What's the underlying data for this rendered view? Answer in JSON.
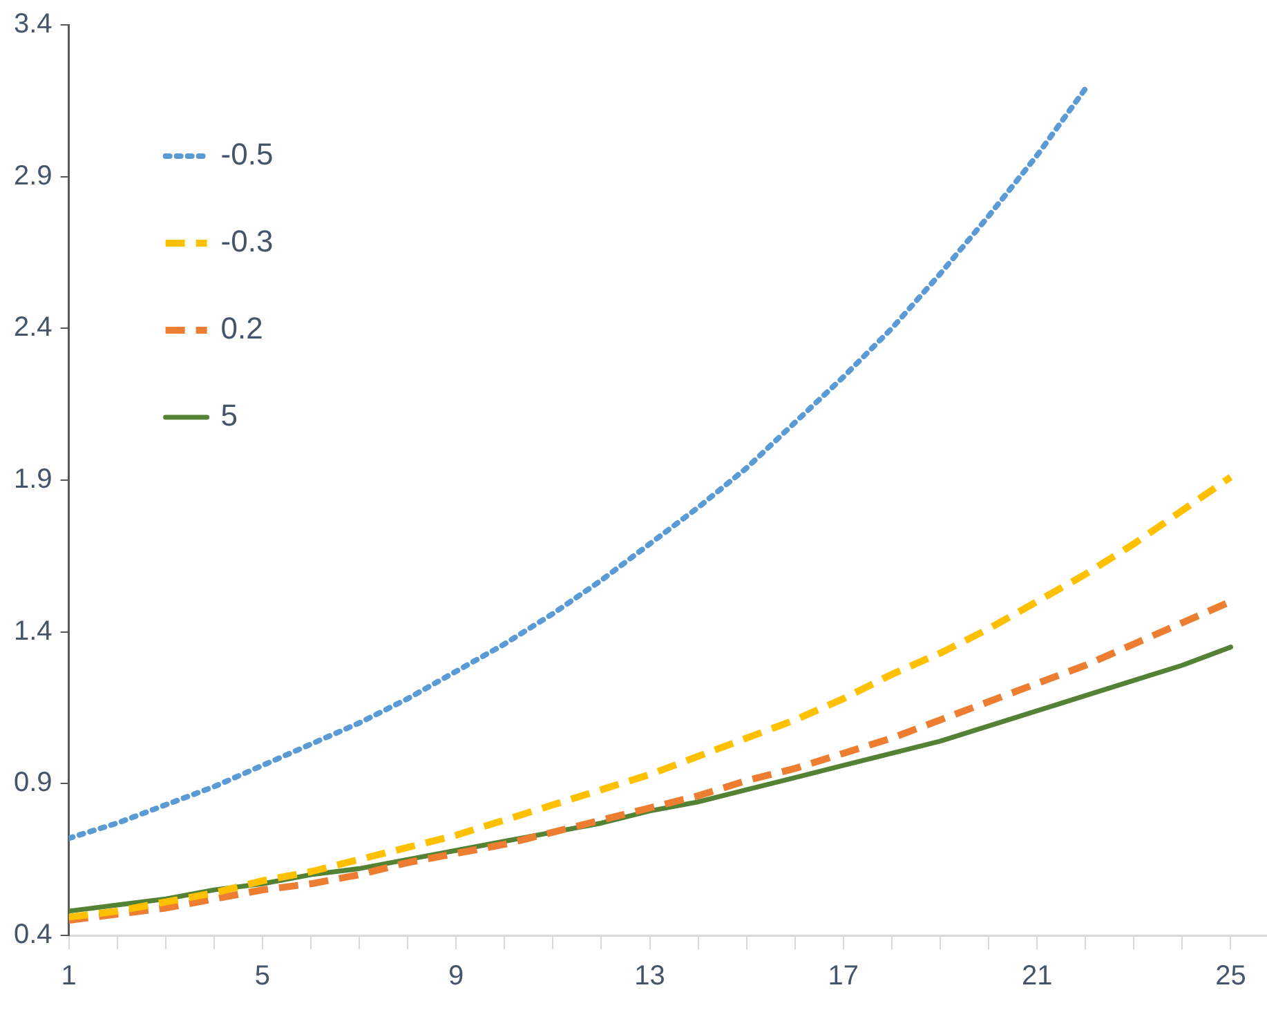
{
  "chart_data": {
    "type": "line",
    "x": [
      1,
      2,
      3,
      4,
      5,
      6,
      7,
      8,
      9,
      10,
      11,
      12,
      13,
      14,
      15,
      16,
      17,
      18,
      19,
      20,
      21,
      22,
      23,
      24,
      25
    ],
    "xlim": [
      1,
      25.75
    ],
    "xticks": [
      1,
      {
        "value": 2,
        "label": null
      },
      {
        "value": 3,
        "label": null
      },
      {
        "value": 4,
        "label": null
      },
      5,
      {
        "value": 6,
        "label": null
      },
      {
        "value": 7,
        "label": null
      },
      {
        "value": 8,
        "label": null
      },
      9,
      {
        "value": 10,
        "label": null
      },
      {
        "value": 11,
        "label": null
      },
      {
        "value": 12,
        "label": null
      },
      13,
      {
        "value": 14,
        "label": null
      },
      {
        "value": 15,
        "label": null
      },
      {
        "value": 16,
        "label": null
      },
      17,
      {
        "value": 18,
        "label": null
      },
      {
        "value": 19,
        "label": null
      },
      {
        "value": 20,
        "label": null
      },
      21,
      {
        "value": 22,
        "label": null
      },
      {
        "value": 23,
        "label": null
      },
      {
        "value": 24,
        "label": null
      },
      25
    ],
    "ylim": [
      0.4,
      3.4
    ],
    "yticks": [
      0.4,
      0.9,
      1.4,
      1.9,
      2.4,
      2.9,
      3.4
    ],
    "grid": false,
    "legend": "top left",
    "marker": "none",
    "series": [
      {
        "name": "-0.5",
        "color": "#5b9bd5",
        "line_style": "dotted",
        "values": [
          0.72,
          0.77,
          0.83,
          0.89,
          0.96,
          1.03,
          1.1,
          1.18,
          1.27,
          1.36,
          1.46,
          1.57,
          1.69,
          1.81,
          1.94,
          2.09,
          2.24,
          2.4,
          2.58,
          2.77,
          2.97,
          3.19,
          null,
          null,
          null
        ]
      },
      {
        "name": "-0.3",
        "color": "#ffc000",
        "line_style": "dashed",
        "values": [
          0.46,
          0.48,
          0.51,
          0.54,
          0.58,
          0.61,
          0.65,
          0.69,
          0.73,
          0.78,
          0.83,
          0.88,
          0.93,
          0.99,
          1.05,
          1.11,
          1.18,
          1.26,
          1.33,
          1.41,
          1.5,
          1.59,
          1.69,
          1.8,
          1.91
        ]
      },
      {
        "name": "0.2",
        "color": "#ed7d31",
        "line_style": "dashed",
        "values": [
          0.45,
          0.47,
          0.49,
          0.52,
          0.55,
          0.57,
          0.6,
          0.64,
          0.67,
          0.7,
          0.74,
          0.78,
          0.82,
          0.86,
          0.91,
          0.95,
          1.0,
          1.05,
          1.11,
          1.17,
          1.23,
          1.29,
          1.36,
          1.43,
          1.5
        ]
      },
      {
        "name": "5",
        "color": "#548235",
        "line_style": "solid",
        "values": [
          0.48,
          0.5,
          0.52,
          0.55,
          0.57,
          0.6,
          0.62,
          0.65,
          0.68,
          0.71,
          0.74,
          0.77,
          0.81,
          0.84,
          0.88,
          0.92,
          0.96,
          1.0,
          1.04,
          1.09,
          1.14,
          1.19,
          1.24,
          1.29,
          1.35
        ]
      }
    ]
  }
}
